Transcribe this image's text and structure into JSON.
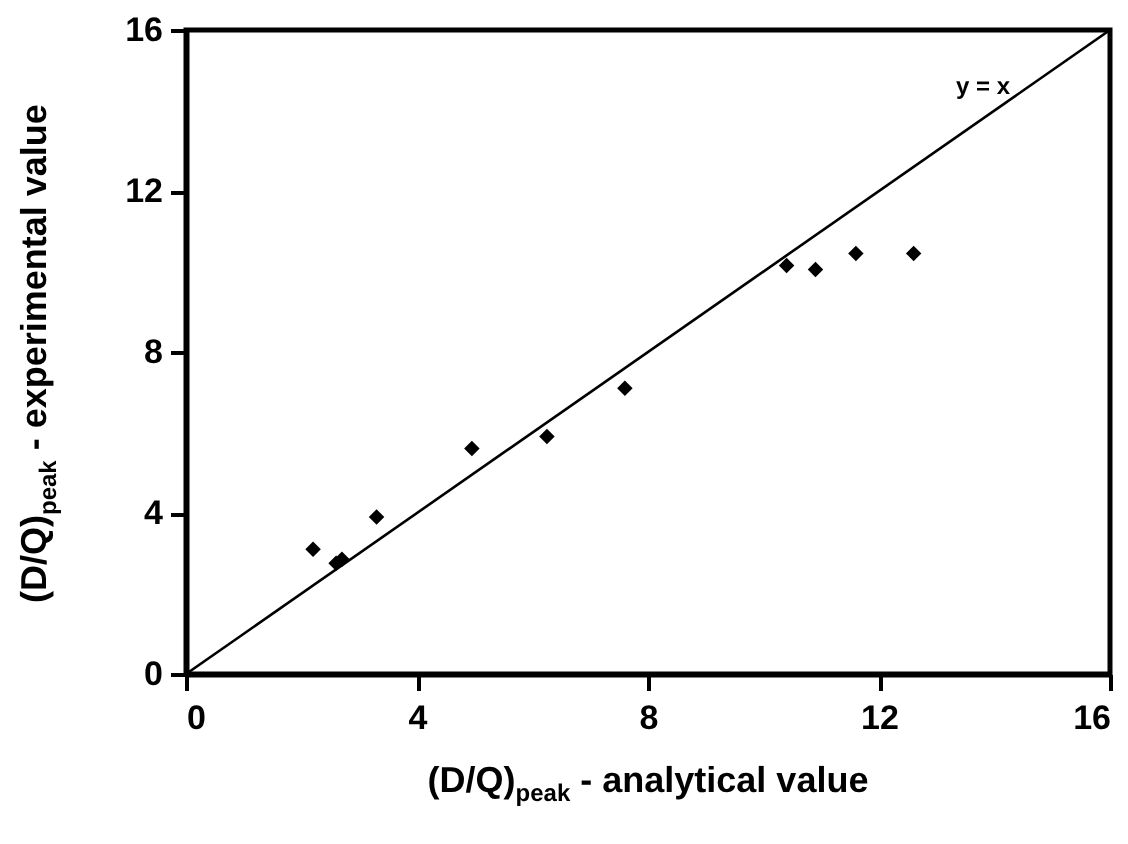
{
  "chart_data": {
    "type": "scatter",
    "xlabel": "(D/Q)$_{peak}$ - analytical value",
    "ylabel": "(D/Q)$_{peak}$ - experimental value",
    "xlim": [
      0,
      16
    ],
    "ylim": [
      0,
      16
    ],
    "xticks": [
      0,
      4,
      8,
      12,
      16
    ],
    "yticks": [
      0,
      4,
      8,
      12,
      16
    ],
    "grid": false,
    "series": [
      {
        "color": "#000000",
        "marker": "diamond",
        "x": [
          2.2,
          2.6,
          2.7,
          3.3,
          4.95,
          6.25,
          7.6,
          10.4,
          10.9,
          11.6,
          12.6
        ],
        "values": [
          3.1,
          2.75,
          2.85,
          3.9,
          5.6,
          5.9,
          7.1,
          10.15,
          10.05,
          10.45,
          10.45
        ]
      },
      {
        "type": "line",
        "color": "#000000",
        "x": [
          0,
          16
        ],
        "values": [
          0,
          16
        ]
      }
    ],
    "annotations": [
      "y = x"
    ]
  }
}
